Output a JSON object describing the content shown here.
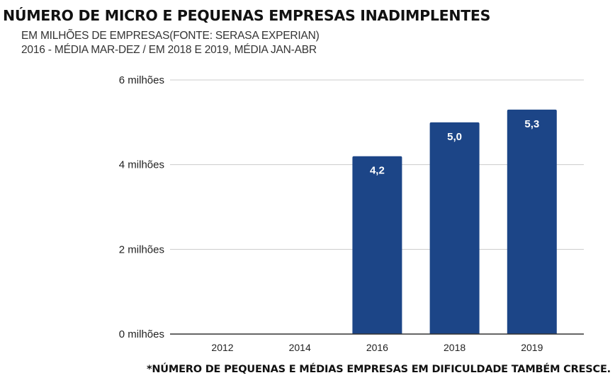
{
  "title": "NÚMERO DE MICRO E PEQUENAS EMPRESAS INADIMPLENTES",
  "subtitle_line1": "EM MILHÕES DE EMPRESAS(FONTE: SERASA EXPERIAN)",
  "subtitle_line2": "2016 - MÉDIA MAR-DEZ / EM 2018 E 2019, MÉDIA JAN-ABR",
  "footnote": "*NÚMERO DE PEQUENAS E MÉDIAS EMPRESAS EM DIFICULDADE TAMBÉM CRESCE.",
  "colors": {
    "bar": "#1c4587",
    "grid": "#cccccc",
    "axis": "#333333"
  },
  "chart_data": {
    "type": "bar",
    "title": "NÚMERO DE MICRO E PEQUENAS EMPRESAS INADIMPLENTES",
    "subtitle": "EM MILHÕES DE EMPRESAS(FONTE: SERASA EXPERIAN) 2016 - MÉDIA MAR-DEZ / EM 2018 E 2019, MÉDIA JAN-ABR",
    "xlabel": "",
    "ylabel": "",
    "categories": [
      "2012",
      "2014",
      "2016",
      "2018",
      "2019"
    ],
    "values": [
      null,
      null,
      4.2,
      5.0,
      5.3
    ],
    "data_labels": [
      "",
      "",
      "4,2",
      "5,0",
      "5,3"
    ],
    "ylim": [
      0,
      6
    ],
    "y_ticks": [
      0,
      2,
      4,
      6
    ],
    "y_tick_labels": [
      "0 milhões",
      "2 milhões",
      "4 milhões",
      "6 milhões"
    ],
    "grid": true,
    "legend": "none"
  }
}
